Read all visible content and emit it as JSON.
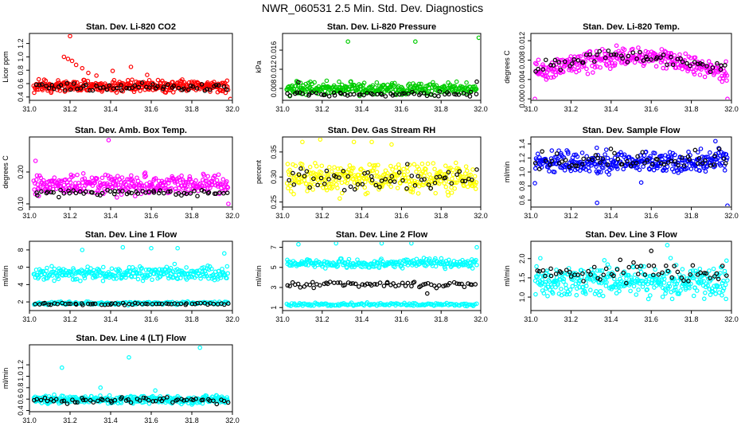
{
  "figure": {
    "title": "NWR_060531  2.5 Min. Std. Dev. Diagnostics"
  },
  "chart_data": [
    {
      "type": "scatter",
      "title": "Stan. Dev. Li-820 CO2",
      "ylabel": "Licor ppm",
      "xlabel": "",
      "xlim": [
        31.0,
        32.0
      ],
      "ylim": [
        0.35,
        1.35
      ],
      "xticks": [
        "31.0",
        "31.2",
        "31.4",
        "31.6",
        "31.8",
        "32.0"
      ],
      "yticks": [
        "0.4",
        "0.6",
        "0.8",
        "1.0",
        "1.2"
      ],
      "grid": false,
      "series": [
        {
          "color": "#ff0000",
          "n": 340,
          "band": [
            0.45,
            0.68
          ],
          "peak": 0,
          "spikes": [
            [
              31.2,
              1.31
            ],
            [
              31.17,
              1.0
            ],
            [
              31.19,
              0.97
            ],
            [
              31.21,
              0.94
            ],
            [
              31.23,
              0.88
            ],
            [
              31.26,
              0.83
            ],
            [
              31.29,
              0.76
            ],
            [
              31.33,
              0.72
            ],
            [
              31.41,
              0.79
            ],
            [
              31.5,
              0.85
            ],
            [
              31.58,
              0.73
            ],
            [
              31.99,
              0.37
            ]
          ]
        },
        {
          "color": "#000000",
          "n": 60,
          "band": [
            0.48,
            0.62
          ],
          "peak": 0,
          "spikes": []
        }
      ]
    },
    {
      "type": "scatter",
      "title": "Stan. Dev. Li-820 Pressure",
      "ylabel": "kPa",
      "xlabel": "",
      "xlim": [
        31.0,
        32.0
      ],
      "ylim": [
        0.0055,
        0.0195
      ],
      "xticks": [
        "31.0",
        "31.2",
        "31.4",
        "31.6",
        "31.8",
        "32.0"
      ],
      "yticks": [
        "0.008",
        "0.012",
        "0.016"
      ],
      "grid": false,
      "series": [
        {
          "color": "#00cc00",
          "n": 320,
          "band": [
            0.0062,
            0.0098
          ],
          "peak": 0,
          "spikes": [
            [
              31.33,
              0.0178
            ],
            [
              31.67,
              0.0178
            ],
            [
              31.99,
              0.0186
            ]
          ]
        },
        {
          "color": "#000000",
          "n": 60,
          "band": [
            0.0062,
            0.0075
          ],
          "peak": 0,
          "spikes": [
            [
              31.08,
              0.0093
            ],
            [
              31.98,
              0.0094
            ]
          ]
        }
      ]
    },
    {
      "type": "scatter",
      "title": "Stan. Dev. Li-820 Temp.",
      "ylabel": "degrees C",
      "xlabel": "",
      "xlim": [
        31.0,
        32.0
      ],
      "ylim": [
        -0.0003,
        0.0135
      ],
      "xticks": [
        "31.0",
        "31.2",
        "31.4",
        "31.6",
        "31.8",
        "32.0"
      ],
      "yticks": [
        "0.000",
        "0.004",
        "0.008",
        "0.012"
      ],
      "grid": false,
      "series": [
        {
          "color": "#ff00ff",
          "n": 320,
          "band": [
            0.004,
            0.0095
          ],
          "peak": 0.0035,
          "spikes": [
            [
              31.02,
              0.0
            ],
            [
              31.98,
              0.0
            ]
          ]
        },
        {
          "color": "#000000",
          "n": 60,
          "band": [
            0.005,
            0.0095
          ],
          "peak": 0.003,
          "spikes": []
        }
      ]
    },
    {
      "type": "scatter",
      "title": "Stan. Dev. Amb. Box Temp.",
      "ylabel": "degrees C",
      "xlabel": "",
      "xlim": [
        31.0,
        32.0
      ],
      "ylim": [
        0.09,
        0.31
      ],
      "xticks": [
        "31.0",
        "31.2",
        "31.4",
        "31.6",
        "31.8",
        "32.0"
      ],
      "yticks": [
        "0.10",
        "0.20"
      ],
      "grid": false,
      "series": [
        {
          "color": "#ff00ff",
          "n": 330,
          "band": [
            0.12,
            0.2
          ],
          "peak": 0,
          "spikes": [
            [
              31.39,
              0.3
            ],
            [
              31.03,
              0.235
            ],
            [
              31.98,
              0.1
            ]
          ]
        },
        {
          "color": "#000000",
          "n": 60,
          "band": [
            0.12,
            0.15
          ],
          "peak": 0,
          "spikes": []
        }
      ]
    },
    {
      "type": "scatter",
      "title": "Stan. Dev. Gas Stream RH",
      "ylabel": "percent",
      "xlabel": "",
      "xlim": [
        31.0,
        32.0
      ],
      "ylim": [
        0.24,
        0.38
      ],
      "xticks": [
        "31.0",
        "31.2",
        "31.4",
        "31.6",
        "31.8",
        "32.0"
      ],
      "yticks": [
        "0.25",
        "0.30",
        "0.35"
      ],
      "grid": false,
      "series": [
        {
          "color": "#ffff00",
          "n": 330,
          "band": [
            0.26,
            0.335
          ],
          "peak": 0,
          "spikes": [
            [
              31.1,
              0.37
            ],
            [
              31.19,
              0.375
            ],
            [
              31.36,
              0.37
            ],
            [
              31.45,
              0.37
            ],
            [
              31.55,
              0.365
            ]
          ]
        },
        {
          "color": "#000000",
          "n": 60,
          "band": [
            0.265,
            0.33
          ],
          "peak": 0,
          "spikes": []
        }
      ]
    },
    {
      "type": "scatter",
      "title": "Stan. Dev. Sample Flow",
      "ylabel": "ml/min",
      "xlabel": "",
      "xlim": [
        31.0,
        32.0
      ],
      "ylim": [
        0.5,
        1.5
      ],
      "xticks": [
        "31.0",
        "31.2",
        "31.4",
        "31.6",
        "31.8",
        "32.0"
      ],
      "yticks": [
        "0.6",
        "0.8",
        "1.0",
        "1.2",
        "1.4"
      ],
      "grid": false,
      "series": [
        {
          "color": "#0000ff",
          "n": 330,
          "band": [
            0.95,
            1.35
          ],
          "peak": 0,
          "spikes": [
            [
              31.33,
              0.56
            ],
            [
              31.98,
              0.52
            ],
            [
              31.02,
              0.84
            ],
            [
              31.55,
              0.85
            ],
            [
              31.92,
              1.44
            ]
          ]
        },
        {
          "color": "#000000",
          "n": 60,
          "band": [
            1.0,
            1.35
          ],
          "peak": 0,
          "spikes": []
        }
      ]
    },
    {
      "type": "scatter",
      "title": "Stan. Dev. Line 1 Flow",
      "ylabel": "ml/min",
      "xlabel": "",
      "xlim": [
        31.0,
        32.0
      ],
      "ylim": [
        1.0,
        9.0
      ],
      "xticks": [
        "31.0",
        "31.2",
        "31.4",
        "31.6",
        "31.8",
        "32.0"
      ],
      "yticks": [
        "2",
        "4",
        "6",
        "8"
      ],
      "grid": false,
      "series": [
        {
          "color": "#00ffff",
          "n": 280,
          "band": [
            4.3,
            6.3
          ],
          "peak": 0,
          "spikes": [
            [
              31.26,
              8.0
            ],
            [
              31.46,
              8.3
            ],
            [
              31.6,
              8.2
            ],
            [
              31.73,
              8.2
            ],
            [
              31.96,
              7.6
            ]
          ]
        },
        {
          "color": "#00ffff",
          "n": 150,
          "band": [
            1.6,
            2.1
          ],
          "peak": 0,
          "spikes": []
        },
        {
          "color": "#000000",
          "n": 60,
          "band": [
            1.6,
            1.95
          ],
          "peak": 0,
          "spikes": []
        }
      ]
    },
    {
      "type": "scatter",
      "title": "Stan. Dev. Line 2 Flow",
      "ylabel": "ml/min",
      "xlabel": "",
      "xlim": [
        31.0,
        32.0
      ],
      "ylim": [
        0.7,
        7.6
      ],
      "xticks": [
        "31.0",
        "31.2",
        "31.4",
        "31.6",
        "31.8",
        "32.0"
      ],
      "yticks": [
        "1",
        "3",
        "5",
        "7"
      ],
      "grid": false,
      "series": [
        {
          "color": "#00ffff",
          "n": 240,
          "band": [
            4.8,
            6.0
          ],
          "peak": 0,
          "spikes": [
            [
              31.08,
              7.3
            ],
            [
              31.27,
              7.4
            ],
            [
              31.5,
              7.4
            ],
            [
              31.65,
              7.4
            ],
            [
              31.98,
              7.0
            ]
          ]
        },
        {
          "color": "#00ffff",
          "n": 150,
          "band": [
            1.1,
            1.5
          ],
          "peak": 0,
          "spikes": []
        },
        {
          "color": "#000000",
          "n": 70,
          "band": [
            2.9,
            3.7
          ],
          "peak": 0,
          "spikes": [
            [
              31.73,
              2.4
            ]
          ]
        }
      ]
    },
    {
      "type": "scatter",
      "title": "Stan. Dev. Line 3 Flow",
      "ylabel": "ml/min",
      "xlabel": "",
      "xlim": [
        31.0,
        32.0
      ],
      "ylim": [
        0.65,
        2.45
      ],
      "xticks": [
        "31.0",
        "31.2",
        "31.4",
        "31.6",
        "31.8",
        "32.0"
      ],
      "yticks": [
        "1.0",
        "1.5",
        "2.0"
      ],
      "grid": false,
      "series": [
        {
          "color": "#00ffff",
          "n": 360,
          "band": [
            0.85,
            2.0
          ],
          "peak": 0,
          "spikes": [
            [
              31.68,
              2.35
            ]
          ]
        },
        {
          "color": "#000000",
          "n": 60,
          "band": [
            1.3,
            2.0
          ],
          "peak": 0,
          "spikes": [
            [
              31.6,
              2.2
            ]
          ]
        }
      ]
    },
    {
      "type": "scatter",
      "title": "Stan. Dev. Line 4 (LT) Flow",
      "ylabel": "ml/min",
      "xlabel": "",
      "xlim": [
        31.0,
        32.0
      ],
      "ylim": [
        0.38,
        1.55
      ],
      "xticks": [
        "31.0",
        "31.2",
        "31.4",
        "31.6",
        "31.8",
        "32.0"
      ],
      "yticks": [
        "0.4",
        "0.6",
        "0.8",
        "1.0",
        "1.2"
      ],
      "grid": false,
      "series": [
        {
          "color": "#00ffff",
          "n": 340,
          "band": [
            0.5,
            0.68
          ],
          "peak": 0,
          "spikes": [
            [
              31.16,
              1.15
            ],
            [
              31.49,
              1.33
            ],
            [
              31.84,
              1.5
            ],
            [
              31.35,
              0.8
            ],
            [
              31.62,
              0.75
            ]
          ]
        },
        {
          "color": "#000000",
          "n": 60,
          "band": [
            0.5,
            0.66
          ],
          "peak": 0,
          "spikes": []
        }
      ]
    }
  ]
}
